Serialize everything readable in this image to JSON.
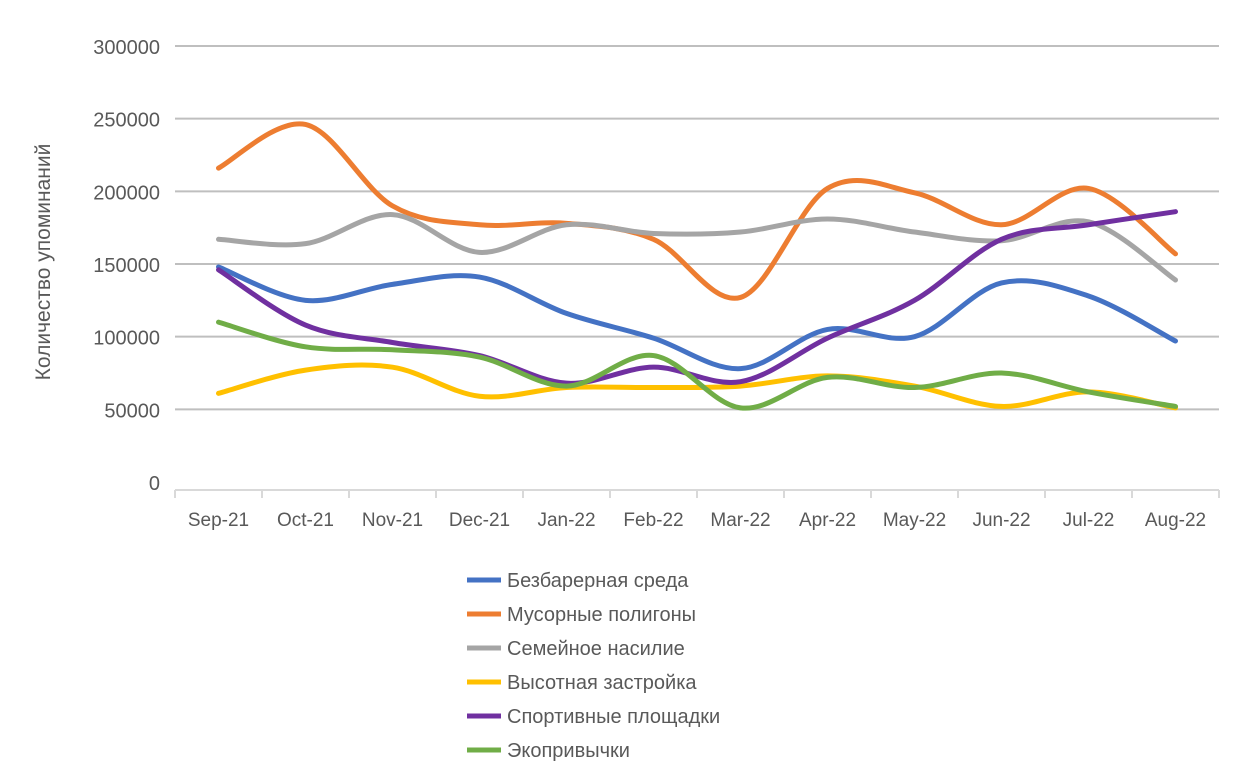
{
  "chart_data": {
    "type": "line",
    "smooth": true,
    "title": "",
    "xlabel": "",
    "ylabel": "Количество упоминаний",
    "ylim": [
      0,
      300000
    ],
    "yticks": [
      0,
      50000,
      100000,
      150000,
      200000,
      250000,
      300000
    ],
    "grid": "horizontal",
    "legend_position": "bottom",
    "categories": [
      "Sep-21",
      "Oct-21",
      "Nov-21",
      "Dec-21",
      "Jan-22",
      "Feb-22",
      "Mar-22",
      "Apr-22",
      "May-22",
      "Jun-22",
      "Jul-22",
      "Aug-22"
    ],
    "series": [
      {
        "name": "Безбарерная среда",
        "color": "#4472C4",
        "values": [
          148000,
          125000,
          136000,
          141000,
          116000,
          99000,
          78000,
          105000,
          100000,
          137000,
          128000,
          97000
        ]
      },
      {
        "name": "Мусорные полигоны",
        "color": "#ED7D31",
        "values": [
          216000,
          246000,
          190000,
          177000,
          178000,
          167000,
          127000,
          202000,
          199000,
          177000,
          202000,
          157000
        ]
      },
      {
        "name": "Семейное насилие",
        "color": "#A5A5A5",
        "values": [
          167000,
          164000,
          184000,
          158000,
          177000,
          171000,
          172000,
          181000,
          172000,
          166000,
          179000,
          139000
        ]
      },
      {
        "name": "Высотная застройка",
        "color": "#FFC000",
        "values": [
          61000,
          77000,
          79000,
          59000,
          65000,
          65000,
          66000,
          73000,
          66000,
          52000,
          62000,
          51000
        ]
      },
      {
        "name": "Спортивные площадки",
        "color": "#7030A0",
        "values": [
          146000,
          108000,
          96000,
          87000,
          68000,
          79000,
          69000,
          99000,
          125000,
          167000,
          177000,
          186000
        ]
      },
      {
        "name": "Экопривычки",
        "color": "#70AD47",
        "values": [
          110000,
          93000,
          91000,
          86000,
          66000,
          87000,
          51000,
          72000,
          65000,
          75000,
          62000,
          52000
        ]
      }
    ]
  }
}
